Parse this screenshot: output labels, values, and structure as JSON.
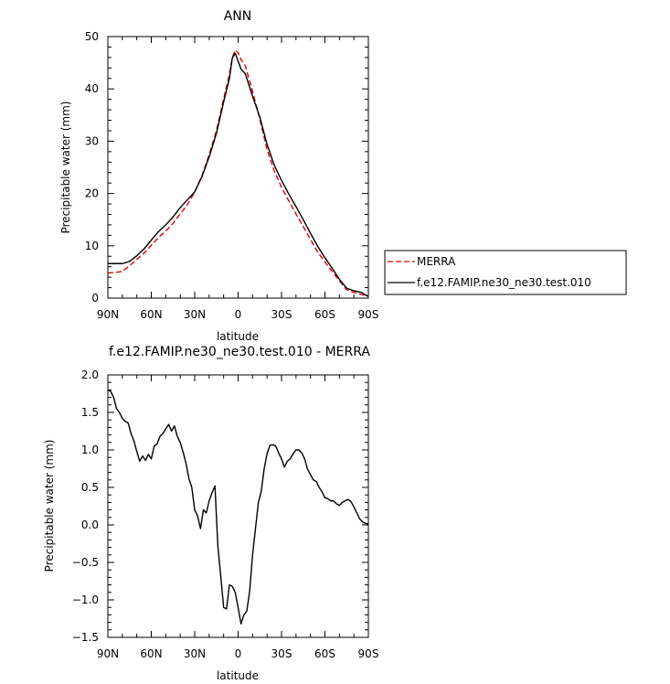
{
  "chart_data": [
    {
      "type": "line",
      "title": "ANN",
      "xlabel": "latitude",
      "ylabel": "Precipitable water (mm)",
      "xlim": [
        -90,
        90
      ],
      "ylim": [
        0,
        50
      ],
      "x_direction": "90N at left, 90S at right",
      "x_ticks": [
        {
          "value": -90,
          "label": "90N"
        },
        {
          "value": -60,
          "label": "60N"
        },
        {
          "value": -30,
          "label": "30N"
        },
        {
          "value": 0,
          "label": "0"
        },
        {
          "value": 30,
          "label": "30S"
        },
        {
          "value": 60,
          "label": "60S"
        },
        {
          "value": 90,
          "label": "90S"
        }
      ],
      "y_ticks": [
        {
          "value": 0,
          "label": "0"
        },
        {
          "value": 10,
          "label": "10"
        },
        {
          "value": 20,
          "label": "20"
        },
        {
          "value": 30,
          "label": "30"
        },
        {
          "value": 40,
          "label": "40"
        },
        {
          "value": 50,
          "label": "50"
        }
      ],
      "grid": false,
      "legend_placement": "right, outside plot",
      "series": [
        {
          "name": "MERRA",
          "color": "#e00000",
          "dash": "dashed",
          "x": [
            -90,
            -85,
            -80,
            -75,
            -70,
            -65,
            -60,
            -55,
            -50,
            -45,
            -40,
            -35,
            -30,
            -25,
            -20,
            -15,
            -10,
            -6,
            -4,
            -2,
            0,
            2,
            5,
            10,
            15,
            20,
            25,
            30,
            35,
            40,
            45,
            50,
            55,
            60,
            65,
            70,
            75,
            80,
            85,
            90
          ],
          "y": [
            4.8,
            4.9,
            5.1,
            6.2,
            7.4,
            8.6,
            10.1,
            11.6,
            12.8,
            14.3,
            16.1,
            17.9,
            20.3,
            23.4,
            27.4,
            32.0,
            38.1,
            42.8,
            46.0,
            47.4,
            46.9,
            45.6,
            44.4,
            39.5,
            34.2,
            28.4,
            24.3,
            21.2,
            18.6,
            16.1,
            13.7,
            11.2,
            8.8,
            6.9,
            5.1,
            3.3,
            1.6,
            1.1,
            0.7,
            0.4
          ]
        },
        {
          "name": "f.e12.FAMIP.ne30_ne30.test.010",
          "color": "#000000",
          "dash": "solid",
          "x": [
            -90,
            -85,
            -80,
            -75,
            -70,
            -65,
            -60,
            -55,
            -50,
            -45,
            -40,
            -35,
            -30,
            -25,
            -20,
            -15,
            -10,
            -6,
            -4,
            -2,
            0,
            2,
            5,
            10,
            15,
            20,
            25,
            30,
            35,
            40,
            45,
            50,
            55,
            60,
            65,
            70,
            75,
            80,
            85,
            90
          ],
          "y": [
            6.6,
            6.6,
            6.6,
            7.0,
            8.1,
            9.4,
            11.1,
            12.7,
            14.0,
            15.5,
            17.3,
            18.8,
            20.3,
            23.2,
            27.0,
            31.5,
            37.5,
            42.0,
            45.9,
            46.8,
            45.3,
            43.8,
            42.9,
            38.6,
            34.6,
            29.4,
            25.4,
            22.5,
            19.9,
            17.5,
            15.0,
            12.4,
            9.9,
            7.7,
            5.7,
            3.6,
            1.9,
            1.4,
            1.1,
            0.3
          ]
        }
      ]
    },
    {
      "type": "line",
      "title": "f.e12.FAMIP.ne30_ne30.test.010 - MERRA",
      "xlabel": "latitude",
      "ylabel": "Precipitable water (mm)",
      "xlim": [
        -90,
        90
      ],
      "ylim": [
        -1.5,
        2.0
      ],
      "x_direction": "90N at left, 90S at right",
      "x_ticks": [
        {
          "value": -90,
          "label": "90N"
        },
        {
          "value": -60,
          "label": "60N"
        },
        {
          "value": -30,
          "label": "30N"
        },
        {
          "value": 0,
          "label": "0"
        },
        {
          "value": 30,
          "label": "30S"
        },
        {
          "value": 60,
          "label": "60S"
        },
        {
          "value": 90,
          "label": "90S"
        }
      ],
      "y_ticks": [
        {
          "value": -1.5,
          "label": "−1.5"
        },
        {
          "value": -1.0,
          "label": "−1.0"
        },
        {
          "value": -0.5,
          "label": "−0.5"
        },
        {
          "value": 0.0,
          "label": "0.0"
        },
        {
          "value": 0.5,
          "label": "0.5"
        },
        {
          "value": 1.0,
          "label": "1.0"
        },
        {
          "value": 1.5,
          "label": "1.5"
        },
        {
          "value": 2.0,
          "label": "2.0"
        }
      ],
      "grid": false,
      "series": [
        {
          "color": "#000000",
          "dash": "solid",
          "x": [
            -90,
            -88,
            -86,
            -84,
            -82,
            -80,
            -78,
            -76,
            -74,
            -72,
            -70,
            -68,
            -66,
            -64,
            -62,
            -60,
            -58,
            -56,
            -54,
            -52,
            -50,
            -48,
            -46,
            -44,
            -42,
            -40,
            -38,
            -36,
            -34,
            -32,
            -30,
            -28,
            -26,
            -24,
            -22,
            -20,
            -18,
            -16,
            -14,
            -12,
            -10,
            -8,
            -6,
            -4,
            -2,
            0,
            2,
            4,
            6,
            8,
            10,
            12,
            14,
            16,
            18,
            20,
            22,
            24,
            26,
            28,
            30,
            32,
            34,
            36,
            38,
            40,
            42,
            44,
            46,
            48,
            50,
            52,
            54,
            56,
            58,
            60,
            62,
            64,
            66,
            68,
            70,
            72,
            74,
            76,
            78,
            80,
            82,
            84,
            86,
            88,
            90
          ],
          "y": [
            1.8,
            1.78,
            1.7,
            1.55,
            1.5,
            1.42,
            1.38,
            1.36,
            1.22,
            1.12,
            0.98,
            0.85,
            0.92,
            0.86,
            0.94,
            0.88,
            1.05,
            1.08,
            1.18,
            1.22,
            1.28,
            1.34,
            1.25,
            1.32,
            1.18,
            1.1,
            0.97,
            0.82,
            0.62,
            0.5,
            0.2,
            0.12,
            -0.05,
            0.2,
            0.16,
            0.32,
            0.43,
            0.52,
            -0.28,
            -0.68,
            -1.1,
            -1.12,
            -0.8,
            -0.82,
            -0.9,
            -1.1,
            -1.32,
            -1.2,
            -1.15,
            -0.88,
            -0.4,
            -0.05,
            0.3,
            0.45,
            0.75,
            0.95,
            1.06,
            1.07,
            1.05,
            0.96,
            0.88,
            0.77,
            0.85,
            0.88,
            0.95,
            1.0,
            1.0,
            0.96,
            0.88,
            0.74,
            0.67,
            0.6,
            0.58,
            0.5,
            0.44,
            0.36,
            0.35,
            0.32,
            0.32,
            0.28,
            0.26,
            0.3,
            0.32,
            0.34,
            0.31,
            0.24,
            0.16,
            0.08,
            0.04,
            0.02,
            0.01
          ]
        }
      ]
    }
  ]
}
